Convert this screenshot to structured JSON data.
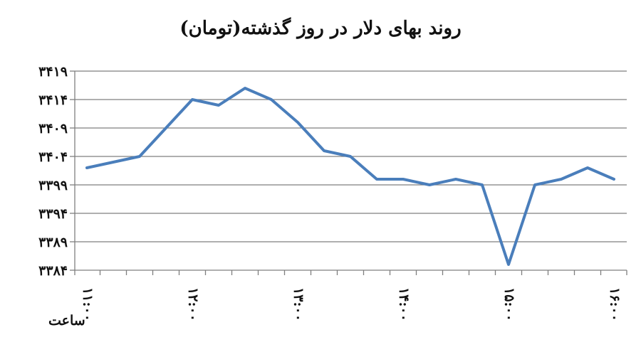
{
  "chart_data": {
    "type": "line",
    "title": "روند بهای دلار در روز گذشته(تومان)",
    "xlabel": "ساعت",
    "ylabel": "",
    "ylim": [
      3384,
      3419
    ],
    "yticks": [
      "۳۳۸۴",
      "۳۳۸۹",
      "۳۳۹۴",
      "۳۳۹۹",
      "۳۴۰۴",
      "۳۴۰۹",
      "۳۴۱۴",
      "۳۴۱۹"
    ],
    "ytick_values": [
      3384,
      3389,
      3394,
      3399,
      3404,
      3409,
      3414,
      3419
    ],
    "xticks": [
      "۱۱:۰۰",
      "۱۲:۰۰",
      "۱۳:۰۰",
      "۱۴:۰۰",
      "۱۵:۰۰",
      "۱۶:۰۰"
    ],
    "xtick_positions": [
      0,
      4,
      8,
      12,
      16,
      20
    ],
    "grid": true,
    "series": [
      {
        "color": "#4a7ebb",
        "values": [
          3402,
          3403,
          3404,
          3409,
          3414,
          3413,
          3416,
          3414,
          3410,
          3405,
          3404,
          3400,
          3400,
          3399,
          3400,
          3399,
          3385,
          3399,
          3400,
          3402,
          3400
        ]
      }
    ]
  }
}
